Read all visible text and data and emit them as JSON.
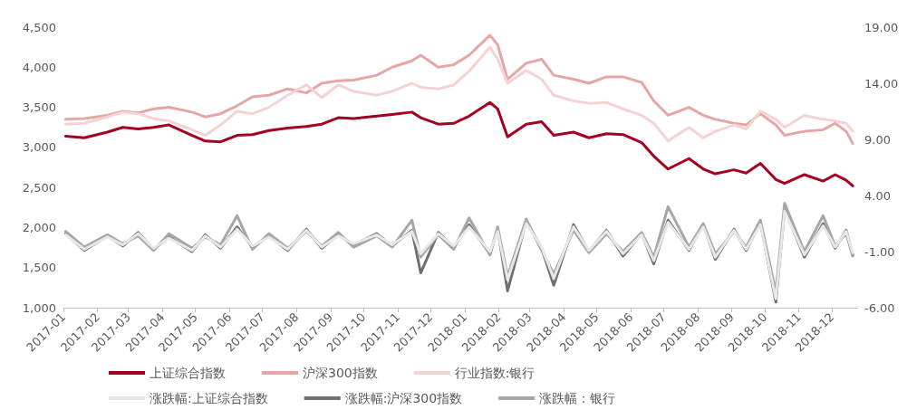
{
  "chart_data": {
    "type": "line",
    "x": [
      "2017-01-03",
      "2017-01-20",
      "2017-02-10",
      "2017-02-24",
      "2017-03-10",
      "2017-03-24",
      "2017-04-07",
      "2017-04-28",
      "2017-05-10",
      "2017-05-24",
      "2017-06-08",
      "2017-06-22",
      "2017-07-07",
      "2017-07-24",
      "2017-08-10",
      "2017-08-24",
      "2017-09-08",
      "2017-09-22",
      "2017-10-13",
      "2017-10-27",
      "2017-11-14",
      "2017-11-22",
      "2017-12-08",
      "2017-12-22",
      "2018-01-05",
      "2018-01-24",
      "2018-01-31",
      "2018-02-09",
      "2018-02-26",
      "2018-03-12",
      "2018-03-23",
      "2018-04-10",
      "2018-04-24",
      "2018-05-10",
      "2018-05-25",
      "2018-06-11",
      "2018-06-22",
      "2018-07-05",
      "2018-07-24",
      "2018-08-06",
      "2018-08-17",
      "2018-09-03",
      "2018-09-14",
      "2018-09-27",
      "2018-10-11",
      "2018-10-19",
      "2018-11-06",
      "2018-11-23",
      "2018-12-04",
      "2018-12-14",
      "2018-12-20"
    ],
    "series": [
      {
        "name": "上证综合指数",
        "color": "#a50021",
        "values": [
          3140,
          3120,
          3190,
          3250,
          3230,
          3250,
          3280,
          3150,
          3080,
          3070,
          3150,
          3160,
          3210,
          3240,
          3260,
          3290,
          3370,
          3360,
          3390,
          3410,
          3440,
          3370,
          3290,
          3300,
          3390,
          3560,
          3480,
          3130,
          3290,
          3320,
          3150,
          3190,
          3120,
          3170,
          3160,
          3060,
          2890,
          2730,
          2860,
          2730,
          2670,
          2720,
          2680,
          2800,
          2600,
          2550,
          2660,
          2580,
          2660,
          2590,
          2520
        ]
      },
      {
        "name": "沪深300指数",
        "color": "#e6a6a6",
        "values": [
          3350,
          3360,
          3400,
          3450,
          3430,
          3480,
          3500,
          3440,
          3380,
          3420,
          3520,
          3630,
          3650,
          3730,
          3680,
          3800,
          3830,
          3840,
          3900,
          4000,
          4080,
          4150,
          4000,
          4030,
          4150,
          4400,
          4280,
          3850,
          4050,
          4100,
          3900,
          3850,
          3800,
          3880,
          3880,
          3810,
          3580,
          3400,
          3500,
          3400,
          3350,
          3300,
          3280,
          3420,
          3280,
          3150,
          3200,
          3220,
          3300,
          3200,
          3050
        ]
      },
      {
        "name": "行业指数:银行",
        "color": "#f5d3d3",
        "values": [
          3290,
          3300,
          3380,
          3440,
          3420,
          3360,
          3330,
          3220,
          3150,
          3280,
          3450,
          3420,
          3500,
          3650,
          3780,
          3620,
          3780,
          3700,
          3650,
          3700,
          3800,
          3750,
          3730,
          3780,
          3950,
          4250,
          4100,
          3800,
          3960,
          3850,
          3650,
          3580,
          3550,
          3560,
          3480,
          3400,
          3300,
          3080,
          3250,
          3120,
          3200,
          3280,
          3230,
          3450,
          3350,
          3250,
          3400,
          3350,
          3330,
          3300,
          3200
        ]
      },
      {
        "name": "涨跌幅:上证综合指数",
        "color": "#e8e8e8",
        "axis": "y2",
        "values": [
          0.5,
          -0.8,
          0.3,
          -0.4,
          0.6,
          -0.7,
          0.2,
          -0.9,
          0.4,
          -0.6,
          1.0,
          -0.5,
          0.3,
          -0.8,
          0.9,
          -0.6,
          0.4,
          -0.3,
          0.5,
          -0.4,
          0.8,
          -1.2,
          0.6,
          -0.5,
          1.2,
          -1.0,
          0.8,
          -3.5,
          1.5,
          -0.6,
          -3.4,
          1.2,
          -0.9,
          0.8,
          -1.2,
          0.5,
          -1.8,
          1.6,
          -0.8,
          1.2,
          -1.5,
          0.9,
          -0.8,
          1.4,
          -5.2,
          2.6,
          -1.3,
          1.3,
          -0.6,
          0.8,
          -1.1
        ]
      },
      {
        "name": "涨跌幅:沪深300指数",
        "color": "#707070",
        "axis": "y2",
        "values": [
          0.6,
          -0.9,
          0.4,
          -0.5,
          0.7,
          -0.8,
          0.3,
          -1.0,
          0.5,
          -0.7,
          1.2,
          -0.6,
          0.4,
          -0.9,
          1.0,
          -0.7,
          0.5,
          -0.4,
          0.6,
          -0.5,
          0.9,
          -2.9,
          0.7,
          -0.6,
          1.4,
          -1.2,
          1.0,
          -4.5,
          1.7,
          -0.7,
          -4.0,
          1.4,
          -1.0,
          0.9,
          -1.4,
          0.6,
          -2.1,
          1.8,
          -0.9,
          1.4,
          -1.7,
          1.0,
          -0.9,
          1.6,
          -5.5,
          2.8,
          -1.5,
          1.5,
          -0.7,
          0.9,
          -1.3
        ]
      },
      {
        "name": "涨跌幅：银行",
        "color": "#a6a6a6",
        "axis": "y2",
        "values": [
          0.8,
          -0.6,
          0.5,
          -0.3,
          0.4,
          -0.9,
          0.6,
          -0.7,
          0.3,
          -0.4,
          2.2,
          -0.8,
          0.6,
          -0.7,
          0.8,
          -0.5,
          0.7,
          -0.6,
          0.4,
          -0.6,
          1.8,
          -1.5,
          0.5,
          -0.8,
          2.0,
          -1.3,
          1.2,
          -3.2,
          1.9,
          -0.9,
          -3.0,
          0.9,
          -1.1,
          0.6,
          -1.0,
          0.7,
          -1.5,
          3.0,
          -0.6,
          1.5,
          -1.2,
          0.8,
          -0.6,
          1.8,
          -4.6,
          3.3,
          -1.0,
          2.2,
          -0.5,
          0.6,
          -1.4
        ]
      }
    ],
    "xlim": [
      "2017-01-01",
      "2018-12-24"
    ],
    "xticks": [
      "2017-01",
      "2017-02",
      "2017-03",
      "2017-04",
      "2017-05",
      "2017-06",
      "2017-07",
      "2017-08",
      "2017-09",
      "2017-10",
      "2017-11",
      "2017-12",
      "2018-01",
      "2018-02",
      "2018-03",
      "2018-04",
      "2018-05",
      "2018-06",
      "2018-07",
      "2018-08",
      "2018-09",
      "2018-10",
      "2018-11",
      "2018-12"
    ],
    "ylim": [
      1000,
      4500
    ],
    "yticks": [
      {
        "value": 1000,
        "label": "1,000"
      },
      {
        "value": 1500,
        "label": "1,500"
      },
      {
        "value": 2000,
        "label": "2,000"
      },
      {
        "value": 2500,
        "label": "2,500"
      },
      {
        "value": 3000,
        "label": "3,000"
      },
      {
        "value": 3500,
        "label": "3,500"
      },
      {
        "value": 4000,
        "label": "4,000"
      },
      {
        "value": 4500,
        "label": "4,500"
      }
    ],
    "y2lim": [
      -6,
      19
    ],
    "y2ticks": [
      {
        "value": -6,
        "label": "-6.00"
      },
      {
        "value": -1,
        "label": "-1.00"
      },
      {
        "value": 4,
        "label": "4.00"
      },
      {
        "value": 9,
        "label": "9.00"
      },
      {
        "value": 14,
        "label": "14.00"
      },
      {
        "value": 19,
        "label": "19.00"
      }
    ],
    "grid": false,
    "legend": "bottom",
    "marker": "none",
    "line_style": "solid"
  }
}
